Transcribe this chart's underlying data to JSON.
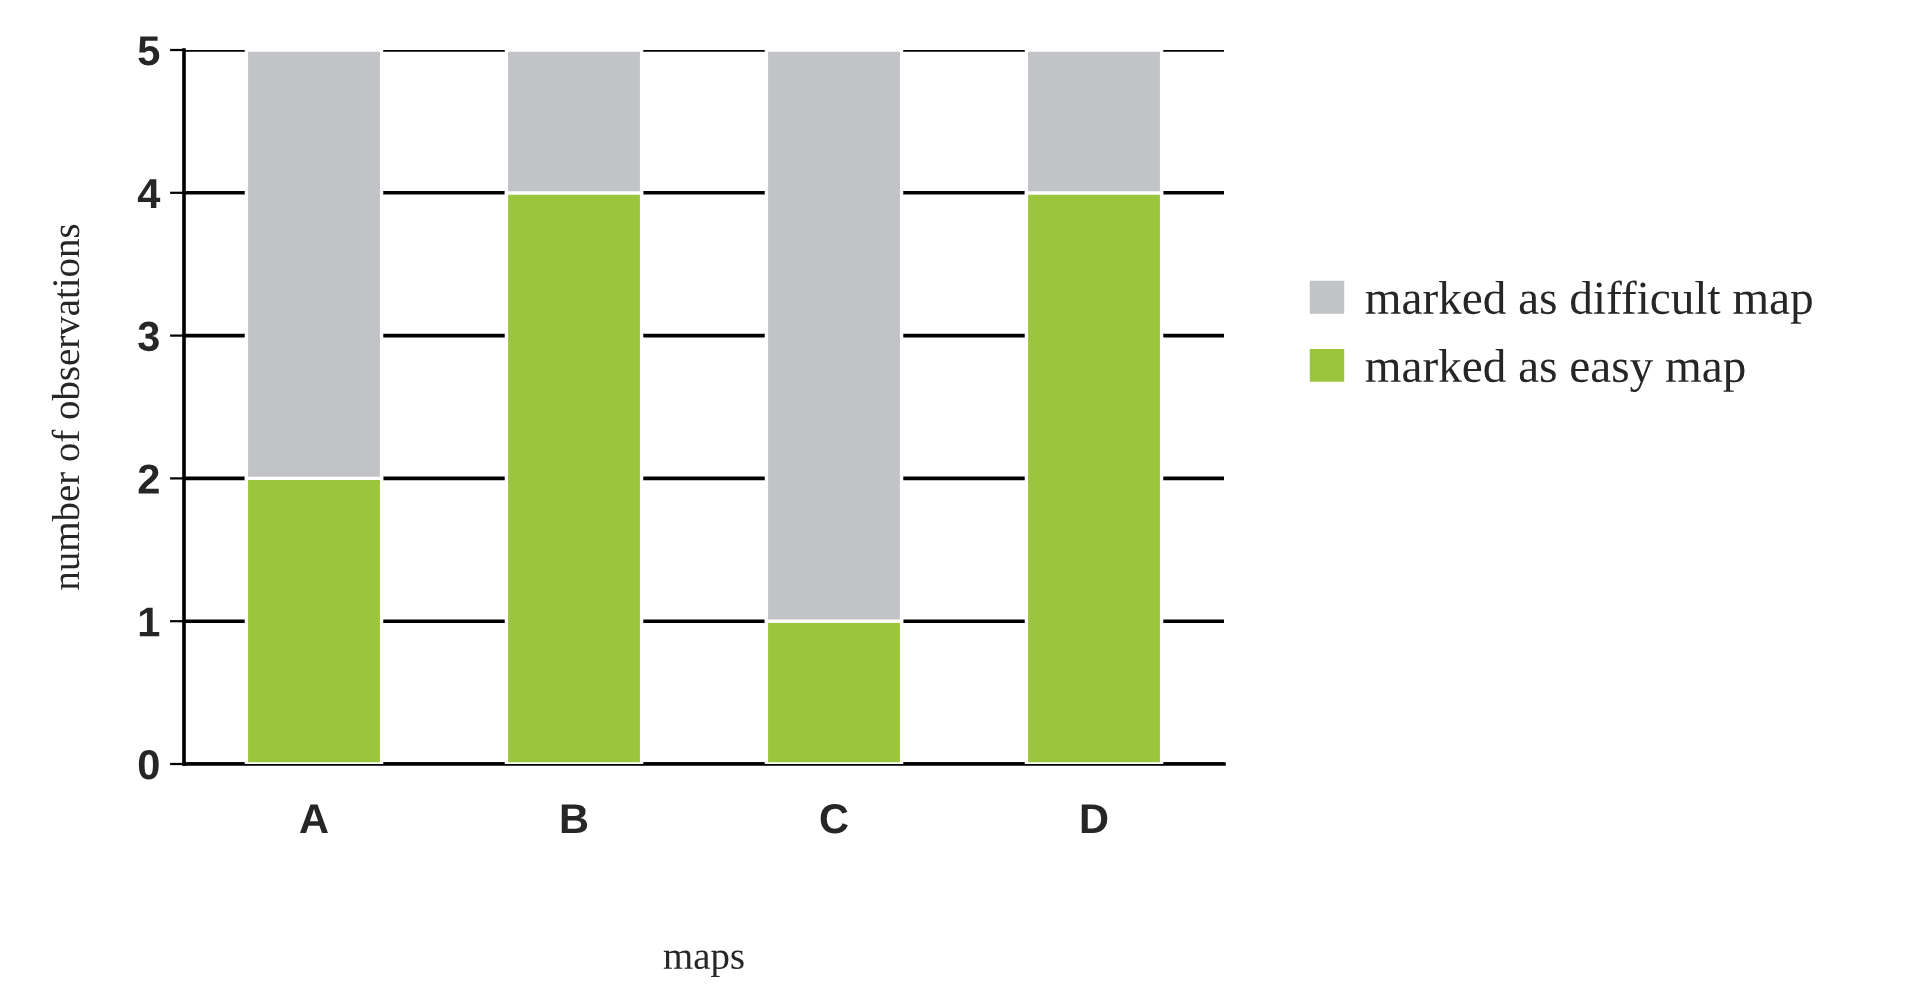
{
  "chart_data": {
    "type": "bar",
    "stacked": true,
    "xlabel": "maps",
    "ylabel": "number of observations",
    "categories": [
      "A",
      "B",
      "C",
      "D"
    ],
    "series": [
      {
        "name": "marked as easy map",
        "color": "#9bc53d",
        "values": [
          2,
          4,
          1,
          4
        ]
      },
      {
        "name": "marked as difficult map",
        "color": "#c2c3c7",
        "values": [
          3,
          1,
          4,
          1
        ]
      }
    ],
    "ylim": [
      0,
      5
    ],
    "yticks": [
      0,
      1,
      2,
      3,
      4,
      5
    ],
    "grid": "y",
    "legend": "right"
  }
}
